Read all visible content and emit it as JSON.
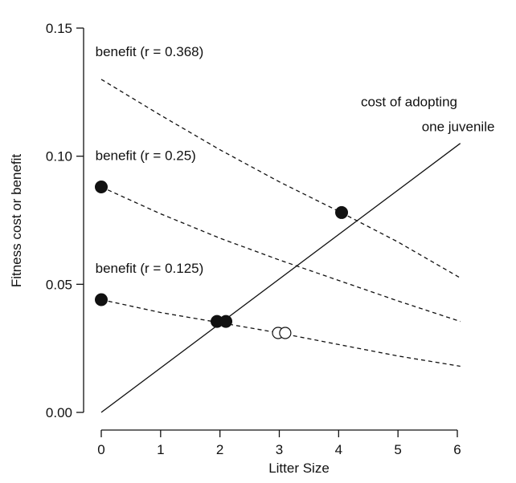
{
  "chart_data": {
    "type": "line",
    "title": "",
    "xlabel": "Litter Size",
    "ylabel": "Fitness cost or benefit",
    "xlim": [
      0,
      6
    ],
    "ylim": [
      0,
      0.15
    ],
    "x_ticks": [
      "0",
      "1",
      "2",
      "3",
      "4",
      "5",
      "6"
    ],
    "y_ticks": [
      "0.00",
      "0.05",
      "0.10",
      "0.15"
    ],
    "grid": false,
    "legend": "none",
    "series": [
      {
        "name": "cost of adopting one juvenile",
        "style": "solid",
        "color": "#111111",
        "x": [
          0,
          6.05
        ],
        "y": [
          0,
          0.105
        ]
      },
      {
        "name": "benefit (r = 0.368)",
        "style": "dashed",
        "color": "#111111",
        "x": [
          0,
          1,
          2,
          3,
          4,
          5,
          6.05
        ],
        "y": [
          0.13,
          0.116,
          0.1025,
          0.09,
          0.0785,
          0.0665,
          0.0525
        ]
      },
      {
        "name": "benefit (r = 0.25)",
        "style": "dashed",
        "color": "#111111",
        "x": [
          0,
          1,
          2,
          3,
          4,
          5,
          6.05
        ],
        "y": [
          0.088,
          0.0775,
          0.068,
          0.0595,
          0.0515,
          0.0435,
          0.0355
        ]
      },
      {
        "name": "benefit (r = 0.125)",
        "style": "dashed",
        "color": "#111111",
        "x": [
          0,
          1,
          2,
          3,
          4,
          5,
          6.05
        ],
        "y": [
          0.044,
          0.039,
          0.035,
          0.031,
          0.0265,
          0.022,
          0.018
        ]
      }
    ],
    "points_filled": [
      {
        "x": 0,
        "y": 0.088
      },
      {
        "x": 0,
        "y": 0.044
      },
      {
        "x": 1.95,
        "y": 0.0355
      },
      {
        "x": 2.1,
        "y": 0.0355
      },
      {
        "x": 4.05,
        "y": 0.078
      }
    ],
    "points_open": [
      {
        "x": 2.98,
        "y": 0.031
      },
      {
        "x": 3.1,
        "y": 0.031
      }
    ],
    "annotations": [
      {
        "text": "benefit (r = 0.368)",
        "x": -0.1,
        "y": 0.139
      },
      {
        "text": "benefit (r = 0.25)",
        "x": -0.1,
        "y": 0.0985
      },
      {
        "text": "benefit (r = 0.125)",
        "x": -0.1,
        "y": 0.0545
      },
      {
        "text": "cost of adopting",
        "x": 6.0,
        "y": 0.1195
      },
      {
        "text": "one juvenile",
        "x": 5.4,
        "y": 0.1097
      }
    ]
  }
}
